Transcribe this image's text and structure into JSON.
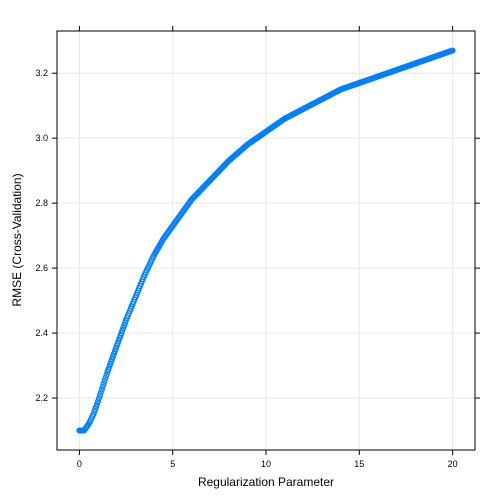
{
  "chart_data": {
    "type": "line",
    "xlabel": "Regularization Parameter",
    "ylabel": "RMSE (Cross-Validation)",
    "xlim": [
      -1.2,
      21.2
    ],
    "ylim": [
      2.04,
      3.33
    ],
    "xticks": [
      0,
      5,
      10,
      15,
      20
    ],
    "yticks": [
      2.2,
      2.4,
      2.6,
      2.8,
      3.0,
      3.2
    ],
    "ytick_labels": [
      "2.2",
      "2.4",
      "2.6",
      "2.8",
      "3.0",
      "3.2"
    ],
    "grid": true,
    "color": "#0080ff",
    "series": [
      {
        "x": [
          0,
          0.25,
          0.5,
          0.75,
          1,
          1.5,
          2,
          2.5,
          3,
          3.5,
          4,
          4.5,
          5,
          6,
          7,
          8,
          9,
          10,
          11,
          12,
          13,
          14,
          15,
          16,
          17,
          18,
          19,
          20
        ],
        "values": [
          2.1,
          2.1,
          2.12,
          2.15,
          2.19,
          2.28,
          2.36,
          2.44,
          2.51,
          2.58,
          2.64,
          2.69,
          2.73,
          2.81,
          2.87,
          2.93,
          2.98,
          3.02,
          3.06,
          3.09,
          3.12,
          3.15,
          3.17,
          3.19,
          3.21,
          3.23,
          3.25,
          3.27
        ]
      }
    ]
  }
}
